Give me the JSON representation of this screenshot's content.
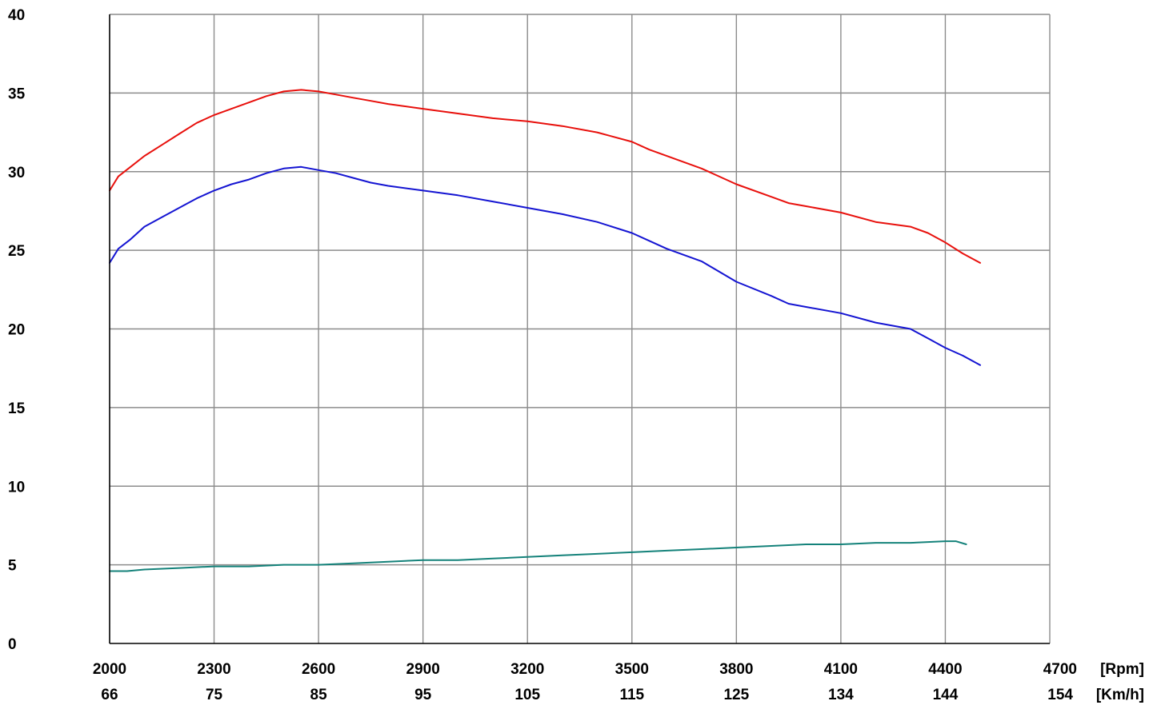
{
  "chart_data": {
    "type": "line",
    "title": "",
    "xlabel": "",
    "ylabel": "",
    "x_unit": "[Rpm]",
    "x2_unit": "[Km/h]",
    "xlim": [
      2000,
      4700
    ],
    "ylim": [
      0,
      40
    ],
    "x_ticks": [
      2000,
      2300,
      2600,
      2900,
      3200,
      3500,
      3800,
      4100,
      4400,
      4700
    ],
    "x2_ticks": [
      "66",
      "75",
      "85",
      "95",
      "105",
      "115",
      "125",
      "134",
      "144",
      "154"
    ],
    "y_ticks": [
      0,
      5,
      10,
      15,
      20,
      25,
      30,
      35,
      40
    ],
    "grid": true,
    "legend": "none",
    "series": [
      {
        "color": "#e8100c",
        "x": [
          2000,
          2025,
          2060,
          2100,
          2150,
          2200,
          2250,
          2300,
          2350,
          2400,
          2450,
          2500,
          2550,
          2600,
          2650,
          2700,
          2750,
          2800,
          2900,
          3000,
          3100,
          3200,
          3300,
          3400,
          3500,
          3550,
          3600,
          3700,
          3800,
          3900,
          3950,
          4000,
          4100,
          4200,
          4300,
          4350,
          4400,
          4450,
          4500
        ],
        "y": [
          28.8,
          29.7,
          30.3,
          31.0,
          31.7,
          32.4,
          33.1,
          33.6,
          34.0,
          34.4,
          34.8,
          35.1,
          35.2,
          35.1,
          34.9,
          34.7,
          34.5,
          34.3,
          34.0,
          33.7,
          33.4,
          33.2,
          32.9,
          32.5,
          31.9,
          31.4,
          31.0,
          30.2,
          29.2,
          28.4,
          28.0,
          27.8,
          27.4,
          26.8,
          26.5,
          26.1,
          25.5,
          24.8,
          24.2
        ]
      },
      {
        "color": "#1414d2",
        "x": [
          2000,
          2025,
          2060,
          2100,
          2150,
          2200,
          2250,
          2300,
          2350,
          2400,
          2450,
          2500,
          2550,
          2600,
          2650,
          2700,
          2750,
          2800,
          2900,
          3000,
          3100,
          3200,
          3300,
          3400,
          3500,
          3550,
          3600,
          3700,
          3800,
          3900,
          3950,
          4000,
          4100,
          4200,
          4300,
          4350,
          4400,
          4450,
          4500
        ],
        "y": [
          24.2,
          25.1,
          25.7,
          26.5,
          27.1,
          27.7,
          28.3,
          28.8,
          29.2,
          29.5,
          29.9,
          30.2,
          30.3,
          30.1,
          29.9,
          29.6,
          29.3,
          29.1,
          28.8,
          28.5,
          28.1,
          27.7,
          27.3,
          26.8,
          26.1,
          25.6,
          25.1,
          24.3,
          23.0,
          22.1,
          21.6,
          21.4,
          21.0,
          20.4,
          20.0,
          19.4,
          18.8,
          18.3,
          17.7
        ]
      },
      {
        "color": "#14827a",
        "x": [
          2000,
          2050,
          2100,
          2200,
          2300,
          2400,
          2500,
          2600,
          2700,
          2800,
          2900,
          3000,
          3100,
          3200,
          3300,
          3400,
          3500,
          3600,
          3700,
          3800,
          3900,
          4000,
          4100,
          4200,
          4300,
          4400,
          4430,
          4460
        ],
        "y": [
          4.6,
          4.6,
          4.7,
          4.8,
          4.9,
          4.9,
          5.0,
          5.0,
          5.1,
          5.2,
          5.3,
          5.3,
          5.4,
          5.5,
          5.6,
          5.7,
          5.8,
          5.9,
          6.0,
          6.1,
          6.2,
          6.3,
          6.3,
          6.4,
          6.4,
          6.5,
          6.5,
          6.3
        ]
      }
    ]
  }
}
